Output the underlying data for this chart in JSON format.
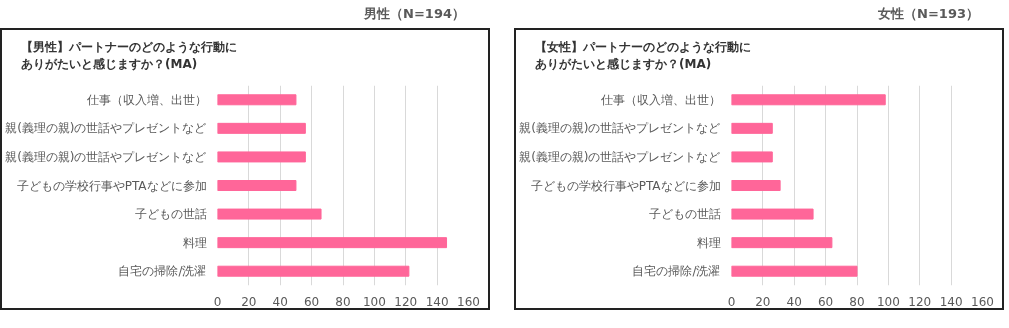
{
  "chart_data": [
    {
      "type": "bar",
      "orientation": "horizontal",
      "subtitle": "男性（N=194）",
      "title": "【男性】パートナーのどのような行動にありがたいと感じますか？(MA)",
      "categories": [
        "仕事（収入増、出世）",
        "親(義理の親)の世話やプレゼントなど",
        "親(義理の親)の世話やプレゼントなど",
        "子どもの学校行事やPTAなどに参加",
        "子どもの世話",
        "料理",
        "自宅の掃除/洗濯"
      ],
      "values": [
        50,
        56,
        56,
        50,
        66,
        146,
        122
      ],
      "color": "#ff6699",
      "xlim": [
        0,
        160
      ],
      "xticks": [
        0,
        20,
        40,
        60,
        80,
        100,
        120,
        140,
        160
      ],
      "grid": "x"
    },
    {
      "type": "bar",
      "orientation": "horizontal",
      "subtitle": "女性（N=193）",
      "title": "【女性】パートナーのどのような行動にありがたいと感じますか？(MA)",
      "categories": [
        "仕事（収入増、出世）",
        "親(義理の親)の世話やプレゼントなど",
        "親(義理の親)の世話やプレゼントなど",
        "子どもの学校行事やPTAなどに参加",
        "子どもの世話",
        "料理",
        "自宅の掃除/洗濯"
      ],
      "values": [
        98,
        26,
        26,
        31,
        52,
        64,
        80
      ],
      "color": "#ff6699",
      "xlim": [
        0,
        160
      ],
      "xticks": [
        0,
        20,
        40,
        60,
        80,
        100,
        120,
        140,
        160
      ],
      "grid": "x"
    }
  ]
}
